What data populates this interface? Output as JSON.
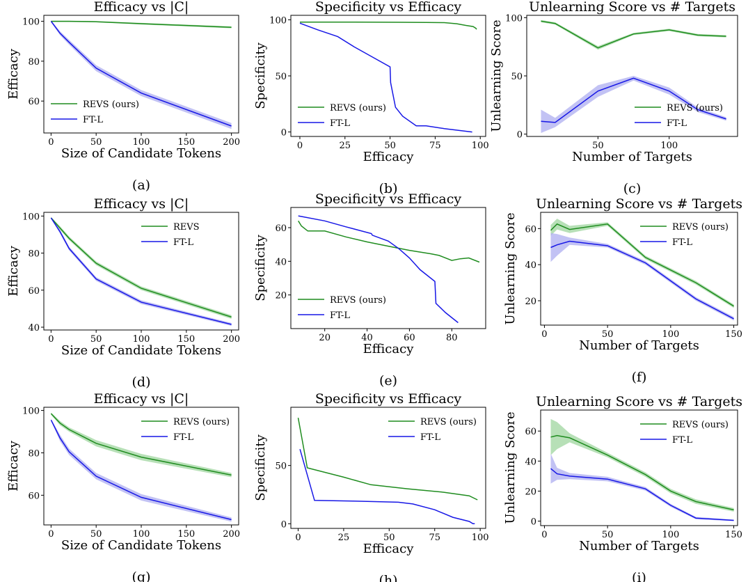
{
  "colors": {
    "revs": "#1f8c1f",
    "ftl": "#1717e6",
    "band_revs": "#9fd69f",
    "band_ftl": "#aeaef0"
  },
  "chart_data": [
    {
      "id": "a",
      "type": "line",
      "label": "(a)",
      "title": "Efficacy vs |C|",
      "xlabel": "Size of Candidate Tokens",
      "ylabel": "Efficacy",
      "xlim": [
        -8,
        208
      ],
      "ylim": [
        44,
        103
      ],
      "xticks": [
        0,
        50,
        100,
        150,
        200
      ],
      "yticks": [
        60,
        80,
        100
      ],
      "legend": "lower-left",
      "series": [
        {
          "name": "REVS (ours)",
          "key": "revs",
          "x": [
            0,
            10,
            20,
            50,
            100,
            200
          ],
          "y": [
            100,
            100,
            100,
            99.8,
            98.8,
            97
          ],
          "band": [
            0.3,
            0.3,
            0.3,
            0.3,
            0.4,
            0.5
          ]
        },
        {
          "name": "FT-L",
          "key": "ftl",
          "x": [
            0,
            10,
            20,
            50,
            100,
            200
          ],
          "y": [
            100,
            94,
            89.5,
            76.5,
            64,
            47.5
          ],
          "band": [
            0.5,
            1,
            1.2,
            1.5,
            1.5,
            1.5
          ]
        }
      ]
    },
    {
      "id": "b",
      "type": "line",
      "label": "(b)",
      "title": "Specificity vs Efficacy",
      "xlabel": "Efficacy",
      "ylabel": "Specificity",
      "xlim": [
        -5,
        103
      ],
      "ylim": [
        -4,
        104
      ],
      "xticks": [
        0,
        25,
        50,
        75,
        100
      ],
      "yticks": [
        0,
        50,
        100
      ],
      "legend": "lower-left",
      "series": [
        {
          "name": "REVS (ours)",
          "key": "revs",
          "x": [
            0,
            30,
            55,
            70,
            80,
            87,
            92,
            96,
            97.5,
            98
          ],
          "y": [
            98,
            98,
            97.8,
            97.6,
            97.5,
            96.5,
            95,
            94,
            92.5,
            91.5
          ]
        },
        {
          "name": "FT-L",
          "key": "ftl",
          "x": [
            0,
            10,
            21,
            30,
            40,
            50,
            50.3,
            53,
            57,
            64.5,
            70,
            80,
            95.5
          ],
          "y": [
            97,
            91,
            85,
            76,
            67,
            58,
            44,
            22,
            14,
            5.5,
            5.5,
            3,
            0
          ]
        }
      ]
    },
    {
      "id": "c",
      "type": "line",
      "label": "(c)",
      "title": "Unlearning Score vs # Targets",
      "xlabel": "Number of Targets",
      "ylabel": "Unlearning Score",
      "xlim": [
        0,
        148
      ],
      "ylim": [
        -2,
        102
      ],
      "xticks": [
        50,
        100
      ],
      "yticks": [
        0,
        50,
        100
      ],
      "legend": "lower-right",
      "series": [
        {
          "name": "REVS (ours)",
          "key": "revs",
          "x": [
            10,
            20,
            50,
            75,
            100,
            120,
            140
          ],
          "y": [
            97,
            95,
            74,
            86,
            89.5,
            85,
            84
          ],
          "band": [
            1,
            1,
            1.5,
            1,
            1,
            1,
            1
          ]
        },
        {
          "name": "FT-L",
          "key": "ftl",
          "x": [
            10,
            20,
            50,
            75,
            100,
            120,
            140
          ],
          "y": [
            11,
            10,
            37,
            48,
            37,
            21,
            13
          ],
          "band": [
            10,
            4,
            5,
            2,
            3,
            2,
            1.5
          ]
        }
      ]
    },
    {
      "id": "d",
      "type": "line",
      "label": "(d)",
      "title": "Efficacy vs |C|",
      "xlabel": "Size of Candidate Tokens",
      "ylabel": "Efficacy",
      "xlim": [
        -8,
        208
      ],
      "ylim": [
        38.5,
        102
      ],
      "xticks": [
        0,
        50,
        100,
        150,
        200
      ],
      "yticks": [
        40,
        60,
        80,
        100
      ],
      "legend": "upper-right",
      "series": [
        {
          "name": "REVS",
          "key": "revs",
          "x": [
            0,
            10,
            20,
            50,
            100,
            200
          ],
          "y": [
            99,
            93.5,
            88,
            74.5,
            61,
            45.5
          ],
          "band": [
            0.5,
            1,
            1,
            1,
            1,
            1
          ]
        },
        {
          "name": "FT-L",
          "key": "ftl",
          "x": [
            0,
            10,
            20,
            50,
            100,
            200
          ],
          "y": [
            99,
            91.5,
            82.5,
            66,
            53.5,
            41.5
          ],
          "band": [
            0.5,
            1,
            1,
            1,
            1,
            0.8
          ]
        }
      ]
    },
    {
      "id": "e",
      "type": "line",
      "label": "(e)",
      "title": "Specificity vs Efficacy",
      "xlabel": "Efficacy",
      "ylabel": "Specificity",
      "xlim": [
        4,
        96
      ],
      "ylim": [
        0,
        72
      ],
      "xticks": [
        20,
        40,
        60,
        80
      ],
      "yticks": [
        20,
        40,
        60
      ],
      "legend": "lower-left",
      "series": [
        {
          "name": "REVS (ours)",
          "key": "revs",
          "x": [
            7.5,
            9,
            12,
            20,
            30,
            40,
            50,
            60,
            70,
            74,
            80,
            84,
            88,
            93
          ],
          "y": [
            64,
            61,
            58,
            58,
            54.5,
            51.5,
            49,
            46.5,
            44.5,
            43.5,
            40.5,
            41.5,
            42,
            39.5
          ]
        },
        {
          "name": "FT-L",
          "key": "ftl",
          "x": [
            7.5,
            20,
            30,
            42,
            42.5,
            50,
            55,
            60,
            65,
            72,
            72.5,
            77,
            83
          ],
          "y": [
            67,
            64,
            60.5,
            56.5,
            55.5,
            52,
            47.5,
            42,
            35,
            28,
            15,
            9.5,
            3.5
          ]
        }
      ]
    },
    {
      "id": "f",
      "type": "line",
      "label": "(f)",
      "title": "Unlearning Score vs # Targets",
      "xlabel": "Number of Targets",
      "ylabel": "Unlearning Score",
      "xlim": [
        -3,
        153
      ],
      "ylim": [
        6.5,
        69
      ],
      "xticks": [
        0,
        50,
        100,
        150
      ],
      "yticks": [
        20,
        40,
        60
      ],
      "legend": "upper-right",
      "series": [
        {
          "name": "REVS (ours)",
          "key": "revs",
          "x": [
            5,
            10,
            20,
            50,
            80,
            100,
            120,
            150
          ],
          "y": [
            59,
            62.5,
            59.5,
            62.5,
            44,
            37,
            30,
            17
          ],
          "band": [
            3,
            3,
            2,
            1,
            1,
            1,
            1,
            1
          ]
        },
        {
          "name": "FT-L",
          "key": "ftl",
          "x": [
            5,
            10,
            20,
            50,
            80,
            100,
            120,
            150
          ],
          "y": [
            49.5,
            51,
            53,
            50.5,
            41,
            31,
            21,
            10
          ],
          "band": [
            8,
            6,
            2,
            1,
            1,
            1,
            1,
            1
          ]
        }
      ]
    },
    {
      "id": "g",
      "type": "line",
      "label": "(g)",
      "title": "Efficacy vs |C|",
      "xlabel": "Size of Candidate Tokens",
      "ylabel": "Efficacy",
      "xlim": [
        -8,
        208
      ],
      "ylim": [
        46,
        101.5
      ],
      "xticks": [
        0,
        50,
        100,
        150,
        200
      ],
      "yticks": [
        60,
        80,
        100
      ],
      "legend": "upper-right",
      "series": [
        {
          "name": "REVS (ours)",
          "key": "revs",
          "x": [
            0,
            10,
            20,
            50,
            100,
            200
          ],
          "y": [
            98.5,
            94,
            91,
            84.5,
            78,
            69.5
          ],
          "band": [
            0.5,
            1,
            1,
            1.5,
            1.5,
            1
          ]
        },
        {
          "name": "FT-L",
          "key": "ftl",
          "x": [
            0,
            10,
            20,
            50,
            100,
            200
          ],
          "y": [
            95.5,
            87,
            80.5,
            69,
            59,
            48.5
          ],
          "band": [
            0.5,
            1.5,
            1.5,
            1.5,
            1.5,
            1
          ]
        }
      ]
    },
    {
      "id": "h",
      "type": "line",
      "label": "(h)",
      "title": "Specificity vs Efficacy",
      "xlabel": "Efficacy",
      "ylabel": "Specificity",
      "xlim": [
        -4,
        103
      ],
      "ylim": [
        -4,
        100
      ],
      "xticks": [
        0,
        25,
        50,
        75,
        100
      ],
      "yticks": [
        0,
        50
      ],
      "legend": "upper-right",
      "series": [
        {
          "name": "REVS (ours)",
          "key": "revs",
          "x": [
            0,
            5,
            25,
            40,
            60,
            80,
            94,
            98.5
          ],
          "y": [
            91,
            48,
            40,
            33.5,
            30,
            27,
            24,
            20.5
          ]
        },
        {
          "name": "FT-L",
          "key": "ftl",
          "x": [
            1,
            9,
            30,
            55,
            63,
            75,
            85,
            94,
            96,
            97
          ],
          "y": [
            64,
            20,
            19.5,
            18.5,
            17,
            12,
            5.5,
            2,
            0,
            0
          ]
        }
      ]
    },
    {
      "id": "i",
      "type": "line",
      "label": "(i)",
      "title": "Unlearning Score vs # Targets",
      "xlabel": "Number of Targets",
      "ylabel": "Unlearning Score",
      "xlim": [
        -3,
        153
      ],
      "ylim": [
        -3,
        74
      ],
      "xticks": [
        0,
        50,
        100,
        150
      ],
      "yticks": [
        0,
        20,
        40,
        60
      ],
      "legend": "upper-right",
      "series": [
        {
          "name": "REVS (ours)",
          "key": "revs",
          "x": [
            5,
            10,
            20,
            50,
            80,
            100,
            120,
            150
          ],
          "y": [
            56,
            57,
            55.5,
            44,
            31,
            20,
            13,
            7.5
          ],
          "band": [
            12,
            9,
            3,
            1.5,
            1.5,
            1.5,
            1.5,
            1.2
          ]
        },
        {
          "name": "FT-L",
          "key": "ftl",
          "x": [
            5,
            10,
            20,
            50,
            80,
            100,
            120,
            150
          ],
          "y": [
            35,
            31.5,
            30,
            28,
            21.5,
            10.5,
            2,
            0.5
          ],
          "band": [
            10,
            4,
            2,
            1.5,
            1.2,
            1,
            0.8,
            0.5
          ]
        }
      ]
    }
  ]
}
